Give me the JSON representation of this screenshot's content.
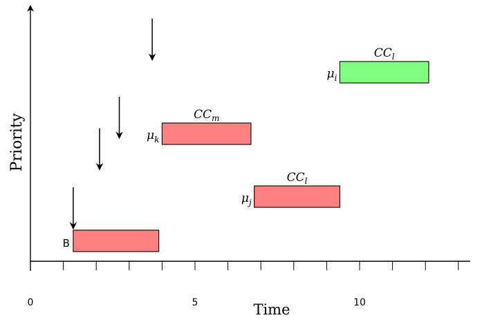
{
  "axes": {
    "x_label": "Time",
    "y_label": "Priority",
    "x_tick_labels": [
      {
        "value": 0,
        "label": "0"
      },
      {
        "value": 5,
        "label": "5"
      },
      {
        "value": 10,
        "label": "10"
      }
    ],
    "x_range": [
      0,
      13.2
    ]
  },
  "colors": {
    "blocked_task": "#ff8080",
    "running_task": "#80ff80",
    "stroke": "#000000"
  },
  "tasks": [
    {
      "id": "base",
      "label_left": "B",
      "label_left_style": "sans",
      "label_top_base": "",
      "label_top_sub": "",
      "start": 1.3,
      "end": 3.9,
      "priority_level": 0,
      "color_key": "blocked_task"
    },
    {
      "id": "task-k",
      "label_left_base": "μ",
      "label_left_sub": "k",
      "label_top_base": "CC",
      "label_top_sub": "m",
      "start": 4.0,
      "end": 6.7,
      "priority_level": 3,
      "color_key": "blocked_task"
    },
    {
      "id": "task-j",
      "label_left_base": "μ",
      "label_left_sub": "j",
      "label_top_base": "CC",
      "label_top_sub": "l",
      "start": 6.8,
      "end": 9.4,
      "priority_level": 1,
      "color_key": "blocked_task"
    },
    {
      "id": "task-i",
      "label_left_base": "μ",
      "label_left_sub": "i",
      "label_top_base": "CC",
      "label_top_sub": "l",
      "start": 9.4,
      "end": 12.1,
      "priority_level": 4,
      "color_key": "running_task"
    }
  ],
  "release_arrows": [
    {
      "time": 1.3,
      "priority_level": 0
    },
    {
      "time": 2.1,
      "priority_level": 1.5
    },
    {
      "time": 2.7,
      "priority_level": 2.5
    },
    {
      "time": 3.7,
      "priority_level": 4
    }
  ]
}
